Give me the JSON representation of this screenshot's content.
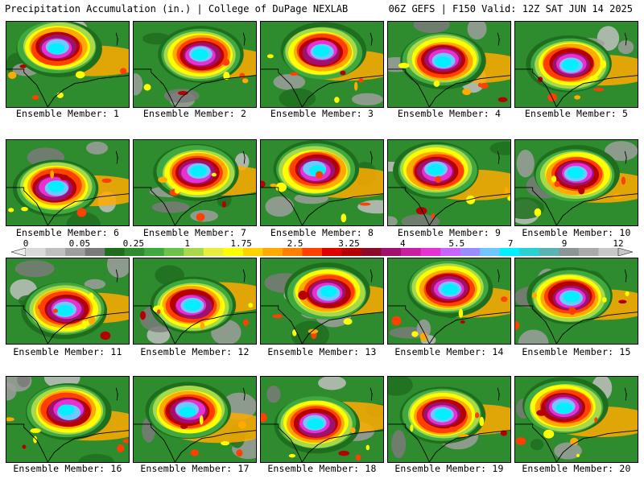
{
  "header": {
    "left_title": "Precipitation Accumulation (in.) | College of DuPage NEXLAB",
    "right_title": "06Z GEFS | F150 Valid: 12Z SAT JUN 14 2025"
  },
  "colorbar": {
    "labels": [
      "0",
      "0.05",
      "0.25",
      "1",
      "1.75",
      "2.5",
      "3.25",
      "4",
      "5.5",
      "7",
      "9",
      "12"
    ],
    "colors": [
      "#d9d9d9",
      "#bfbfbf",
      "#9e9e9e",
      "#7a7a7a",
      "#1e6e1e",
      "#2e8b2e",
      "#3fa93f",
      "#6cc24a",
      "#a8d94a",
      "#e6f03c",
      "#ffff00",
      "#ffd200",
      "#ffaa00",
      "#ff7f00",
      "#ff4000",
      "#e00000",
      "#b40000",
      "#8b0a28",
      "#a0106e",
      "#c81ea0",
      "#e632d2",
      "#c864ff",
      "#9b8cff",
      "#6ec8ff",
      "#00f0ff",
      "#28d2d2",
      "#5ab4b4",
      "#8c9696",
      "#aaaaaa",
      "#c8c8c8"
    ]
  },
  "members": [
    {
      "label": "Ensemble Member: 1"
    },
    {
      "label": "Ensemble Member: 2"
    },
    {
      "label": "Ensemble Member: 3"
    },
    {
      "label": "Ensemble Member: 4"
    },
    {
      "label": "Ensemble Member: 5"
    },
    {
      "label": "Ensemble Member: 6"
    },
    {
      "label": "Ensemble Member: 7"
    },
    {
      "label": "Ensemble Member: 8"
    },
    {
      "label": "Ensemble Member: 9"
    },
    {
      "label": "Ensemble Member: 10"
    },
    {
      "label": "Ensemble Member: 11"
    },
    {
      "label": "Ensemble Member: 12"
    },
    {
      "label": "Ensemble Member: 13"
    },
    {
      "label": "Ensemble Member: 14"
    },
    {
      "label": "Ensemble Member: 15"
    },
    {
      "label": "Ensemble Member: 16"
    },
    {
      "label": "Ensemble Member: 17"
    },
    {
      "label": "Ensemble Member: 18"
    },
    {
      "label": "Ensemble Member: 19"
    },
    {
      "label": "Ensemble Member: 20"
    }
  ]
}
